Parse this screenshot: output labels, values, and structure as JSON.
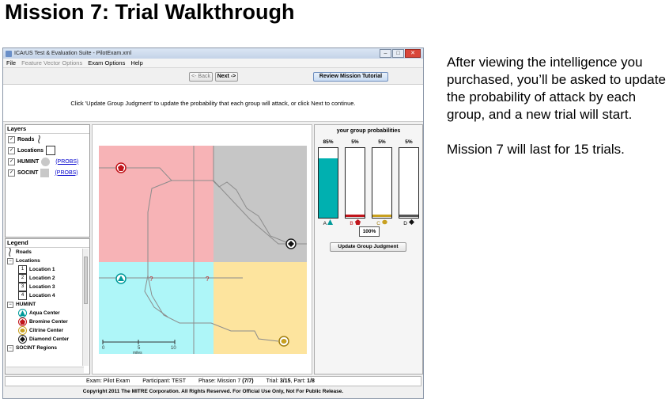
{
  "slide": {
    "title": "Mission 7: Trial Walkthrough",
    "paragraph1": "After viewing the intelligence you purchased, you’ll be asked to update the probability of attack by each group, and a new trial will start.",
    "paragraph2": "Mission 7 will last for 15 trials."
  },
  "window": {
    "title": "ICArUS Test & Evaluation Suite - PilotExam.xml",
    "menu": [
      "File",
      "Feature Vector Options",
      "Exam Options",
      "Help"
    ],
    "buttons": {
      "back": "<- Back",
      "next": "Next ->",
      "review": "Review Mission Tutorial"
    },
    "instruction": "Click 'Update Group Judgment' to update the probability that each group will attack, or click Next to continue."
  },
  "layers": {
    "title": "Layers",
    "items": [
      {
        "label": "Roads",
        "checked": true
      },
      {
        "label": "Locations",
        "checked": true
      },
      {
        "label": "HUMINT",
        "checked": true,
        "link": "(PROBS)"
      },
      {
        "label": "SOCINT",
        "checked": true,
        "link": "(PROBS)"
      }
    ]
  },
  "legend": {
    "title": "Legend",
    "roads": "Roads",
    "locations": "Locations",
    "location_items": [
      "Location 1",
      "Location 2",
      "Location 3",
      "Location 4"
    ],
    "location_numbers": [
      "1",
      "2",
      "3",
      "4"
    ],
    "humint": "HUMINT",
    "humint_items": [
      "Aqua Center",
      "Bromine Center",
      "Citrine Center",
      "Diamond Center"
    ],
    "socint": "SOCINT Regions"
  },
  "map": {
    "scale_labels": [
      "0",
      "5",
      "10"
    ],
    "scale_unit": "miles",
    "unknown_marker": "?"
  },
  "group_probs": {
    "title": "your group probabilities",
    "groups": [
      {
        "label": "A",
        "pct_text": "85%",
        "value": 0.85,
        "color": "#00b0b0"
      },
      {
        "label": "B",
        "pct_text": "5%",
        "value": 0.05,
        "color": "#c0151b"
      },
      {
        "label": "C",
        "pct_text": "5%",
        "value": 0.05,
        "color": "#c8a020"
      },
      {
        "label": "D",
        "pct_text": "5%",
        "value": 0.05,
        "color": "#555555"
      }
    ],
    "total": "100%",
    "update_button": "Update Group Judgment"
  },
  "status": {
    "exam": "Exam: Pilot Exam",
    "participant": "Participant: TEST",
    "phase_label": "Phase: Mission 7",
    "phase_value": "(7/7)",
    "trial_label": "Trial:",
    "trial_value": "3/15",
    "part_label": "Part:",
    "part_value": "1/8"
  },
  "copyright": "Copyright 2011 The MITRE Corporation. All Rights Reserved. For Official Use Only, Not For Public Release.",
  "colors": {
    "region_a": "#aef6f8",
    "region_b": "#f7b3b6",
    "region_c": "#fde49e",
    "region_d": "#c6c6c6"
  }
}
